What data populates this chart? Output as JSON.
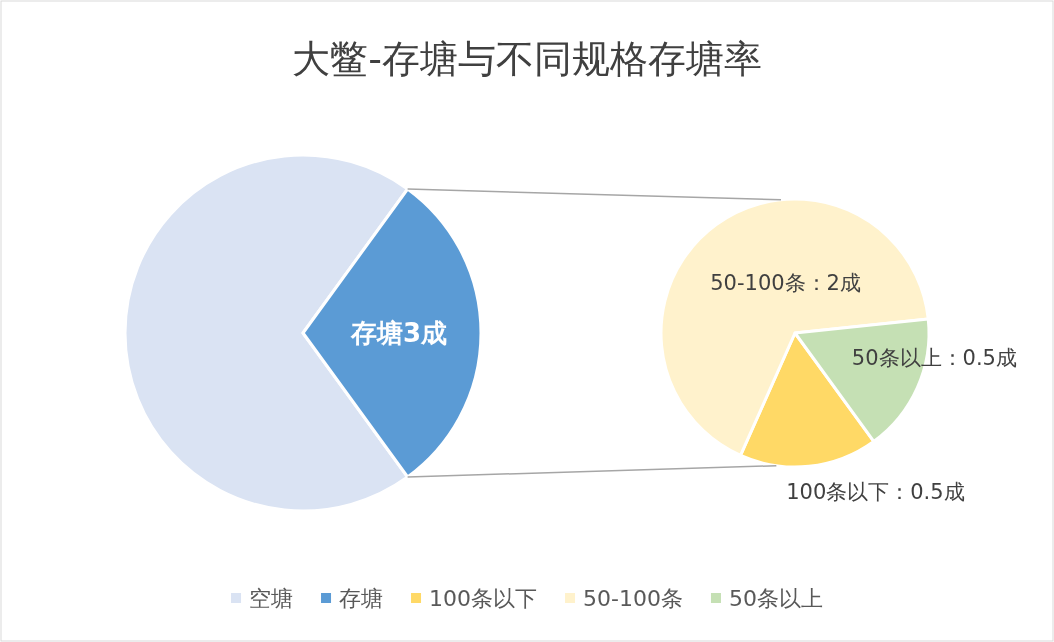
{
  "chart_data": [
    {
      "type": "pie",
      "title": "大鳖-存塘与不同规格存塘率",
      "categories": [
        "空塘",
        "存塘"
      ],
      "values": [
        7,
        3
      ],
      "colors": [
        "#dae3f3",
        "#5b9bd5"
      ],
      "value_labels": [
        null,
        "存塘3成"
      ],
      "legend": "bottom"
    },
    {
      "type": "pie",
      "categories": [
        "100条以下",
        "50-100条",
        "50条以上"
      ],
      "values": [
        0.5,
        2,
        0.5
      ],
      "colors": [
        "#ffd966",
        "#fff2cc",
        "#c5e0b4"
      ],
      "value_labels": [
        "100条以下：0.5成",
        "50-100条：2成",
        "50条以上：0.5成"
      ],
      "legend": "bottom"
    }
  ]
}
